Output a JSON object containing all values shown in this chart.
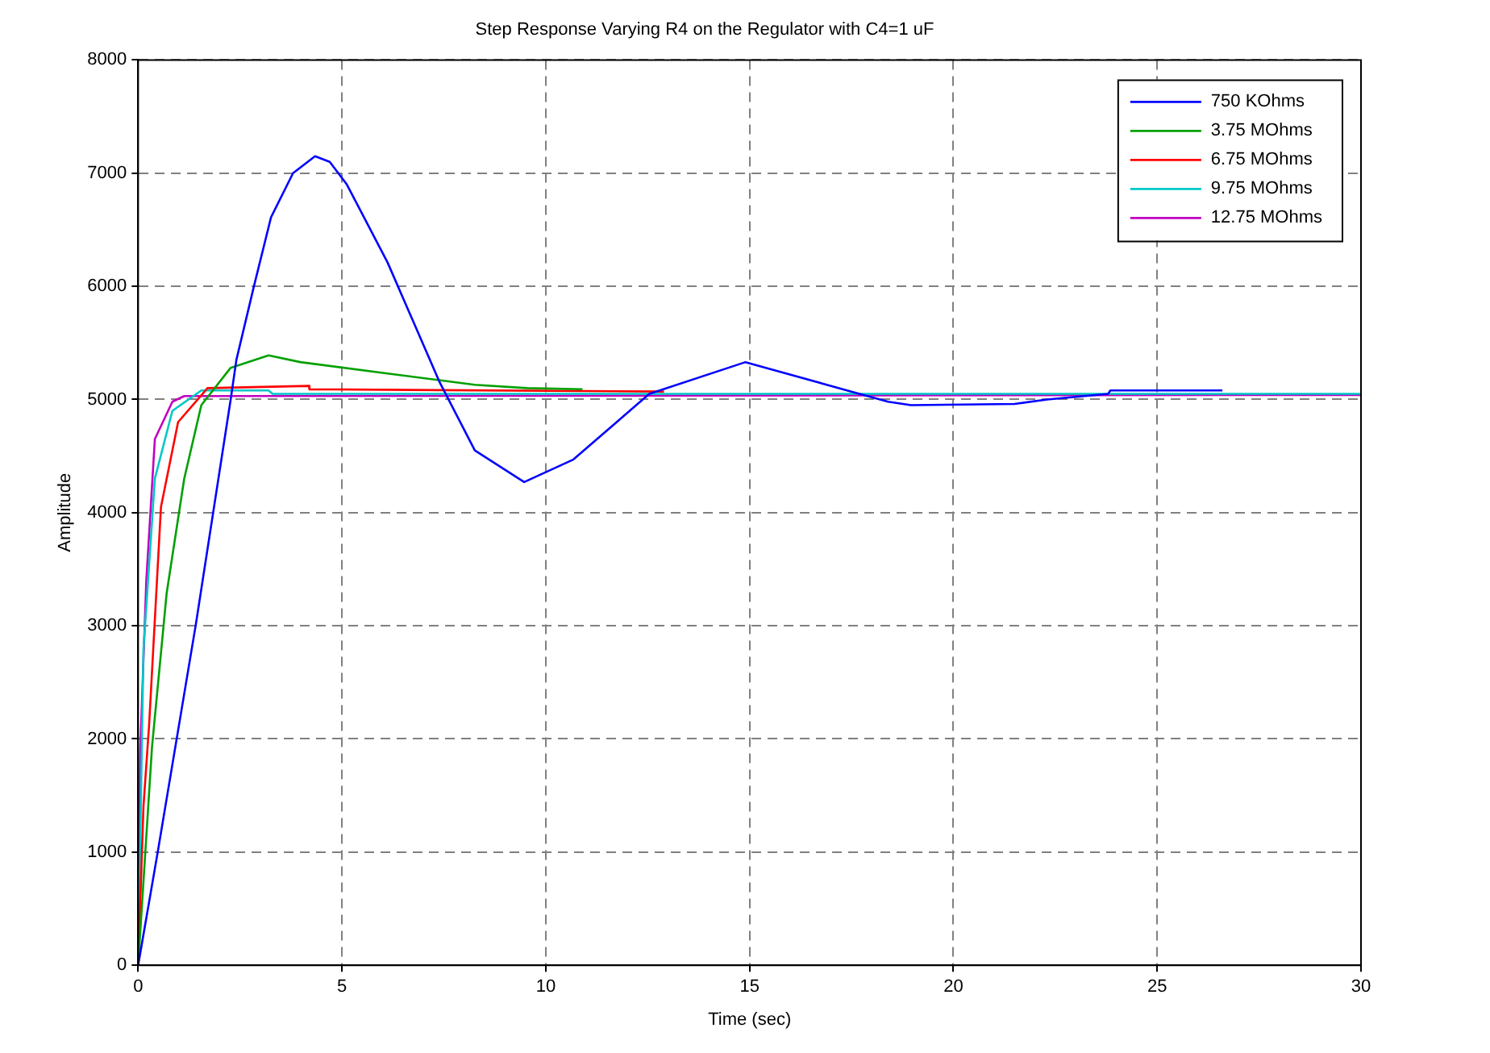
{
  "chart_data": {
    "type": "line",
    "title": "Step Response Varying R4 on the Regulator with C4=1 uF",
    "xlabel": "Time (sec)",
    "ylabel": "Amplitude",
    "xlim": [
      0,
      30
    ],
    "xticks": [
      0,
      5,
      10,
      15,
      20,
      25,
      30
    ],
    "ylim": [
      0,
      8000
    ],
    "yticks": [
      0,
      1000,
      2000,
      3000,
      4000,
      5000,
      6000,
      7000,
      8000
    ],
    "grid": true,
    "legend": "top right",
    "marker": "none",
    "line_style": "solid",
    "series": [
      {
        "name": "750 KOhms",
        "color": "#0000ff",
        "x": [
          0,
          0.48,
          1.41,
          2.27,
          2.41,
          2.84,
          3.26,
          3.8,
          4.34,
          4.7,
          5.12,
          6.12,
          7.4,
          8.26,
          9.47,
          10.68,
          12.54,
          14.9,
          17.39,
          18.4,
          18.96,
          21.5,
          22.3,
          23.8,
          23.85,
          26.6
        ],
        "values": [
          0,
          1000,
          3000,
          5000,
          5350,
          6000,
          6610,
          7000,
          7150,
          7100,
          6900,
          6210,
          5150,
          4550,
          4270,
          4470,
          5050,
          5330,
          5080,
          4980,
          4950,
          4960,
          5000,
          5050,
          5080,
          5080
        ]
      },
      {
        "name": "3.75 MOhms",
        "color": "#00a000",
        "x": [
          0,
          0.34,
          0.7,
          1.13,
          1.55,
          2.27,
          3.2,
          3.98,
          6.12,
          8.26,
          9.54,
          10.9
        ],
        "values": [
          0,
          1930,
          3290,
          4300,
          4950,
          5280,
          5390,
          5330,
          5230,
          5130,
          5100,
          5090
        ]
      },
      {
        "name": "6.75 MOhms",
        "color": "#ff0000",
        "x": [
          0,
          0.13,
          0.27,
          0.56,
          0.98,
          1.7,
          4.19,
          4.2,
          12.9
        ],
        "values": [
          0,
          1400,
          2130,
          4050,
          4800,
          5100,
          5120,
          5090,
          5070
        ]
      },
      {
        "name": "9.75 MOhms",
        "color": "#00c8c8",
        "x": [
          0,
          0.13,
          0.41,
          0.84,
          1.55,
          3.2,
          3.3,
          30
        ],
        "values": [
          0,
          2790,
          4300,
          4900,
          5080,
          5080,
          5050,
          5050
        ]
      },
      {
        "name": "12.75 MOhms",
        "color": "#c000c0",
        "x": [
          0,
          0.05,
          0.2,
          0.41,
          0.84,
          1.13,
          30
        ],
        "values": [
          0,
          1890,
          3400,
          4650,
          4980,
          5030,
          5040
        ]
      }
    ]
  }
}
